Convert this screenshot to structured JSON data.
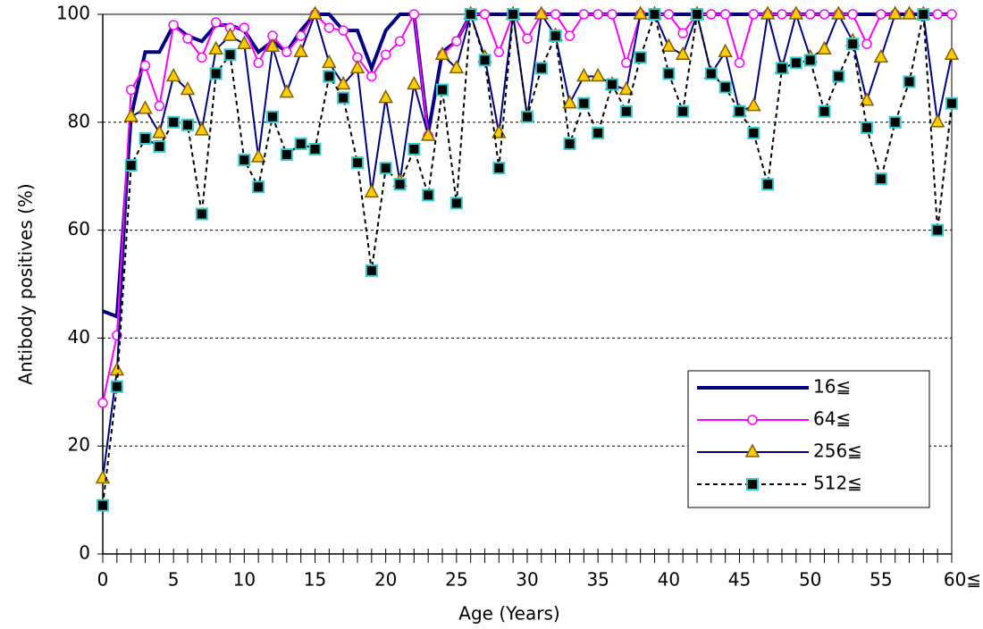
{
  "chart_data": {
    "type": "line",
    "xlabel": "Age (Years)",
    "ylabel": "Antibody positives (%)",
    "categories": [
      "0",
      null,
      null,
      null,
      null,
      "5",
      null,
      null,
      null,
      null,
      "10",
      null,
      null,
      null,
      null,
      "15",
      null,
      null,
      null,
      null,
      "20",
      null,
      null,
      null,
      null,
      "25",
      null,
      null,
      null,
      null,
      "30",
      null,
      null,
      null,
      null,
      "35",
      null,
      null,
      null,
      null,
      "40",
      null,
      null,
      null,
      null,
      "45",
      null,
      null,
      null,
      null,
      "50",
      null,
      null,
      null,
      null,
      "55",
      null,
      null,
      null,
      null,
      "60≦"
    ],
    "ylim": [
      0,
      100
    ],
    "yticks": [
      0,
      20,
      40,
      60,
      80,
      100
    ],
    "grid": true,
    "legend": "lower right",
    "series": [
      {
        "name": "16≦",
        "color": "#000080",
        "line_width": 4,
        "dash": false,
        "marker": "none",
        "values": [
          45,
          44,
          81,
          93,
          93,
          98,
          96,
          95,
          98,
          98,
          97,
          93,
          95,
          93,
          97,
          100,
          100,
          97,
          97,
          90,
          97,
          100,
          100,
          78,
          93,
          95,
          100,
          100,
          100,
          100,
          100,
          100,
          100,
          100,
          100,
          100,
          100,
          100,
          100,
          100,
          100,
          100,
          100,
          100,
          100,
          100,
          100,
          100,
          100,
          100,
          100,
          100,
          100,
          100,
          100,
          100,
          100,
          100,
          100,
          100,
          100
        ]
      },
      {
        "name": "64≦",
        "color": "#ff00ff",
        "line_width": 2,
        "dash": false,
        "marker": "circle",
        "marker_fill": "#ffffff",
        "marker_edge": "#ff00ff",
        "values": [
          28,
          40.5,
          86,
          90.5,
          83,
          98,
          95.5,
          92,
          98.5,
          97.5,
          97.5,
          91,
          96,
          93,
          96,
          100,
          97.5,
          97,
          92,
          88.5,
          92.5,
          95,
          100,
          77.5,
          92.5,
          95,
          100,
          100,
          93,
          100,
          95.5,
          100,
          100,
          96,
          100,
          100,
          100,
          91,
          100,
          100,
          100,
          96.5,
          100,
          100,
          100,
          91,
          100,
          100,
          100,
          100,
          100,
          100,
          100,
          100,
          94.5,
          100,
          100,
          100,
          100,
          100,
          100
        ]
      },
      {
        "name": "256≦",
        "color": "#000080",
        "line_width": 2,
        "dash": false,
        "marker": "triangle",
        "marker_fill": "#ffcc00",
        "marker_edge": "#806000",
        "values": [
          14,
          34,
          81,
          82.5,
          78,
          88.5,
          86,
          78.5,
          93.5,
          96,
          94.5,
          73.5,
          94,
          85.5,
          93,
          100,
          91,
          87,
          90,
          67,
          84.5,
          69,
          87,
          77.5,
          92.5,
          90,
          100,
          92,
          78,
          100,
          81,
          100,
          96,
          83.5,
          88.5,
          88.5,
          87,
          86,
          100,
          100,
          94,
          92.5,
          100,
          89,
          93,
          82,
          83,
          100,
          90,
          100,
          92,
          93.5,
          100,
          95,
          84,
          92,
          100,
          100,
          100,
          80,
          92.5
        ]
      },
      {
        "name": "512≦",
        "color": "#000000",
        "line_width": 2,
        "dash": true,
        "marker": "square",
        "marker_fill": "#000000",
        "marker_edge": "#33cccc",
        "values": [
          9,
          31,
          72,
          77,
          75.5,
          80,
          79.5,
          63,
          89,
          92.5,
          73,
          68,
          81,
          74,
          76,
          75,
          88.5,
          84.5,
          72.5,
          52.5,
          71.5,
          68.5,
          75,
          66.5,
          86,
          65,
          100,
          91.5,
          71.5,
          100,
          81,
          90,
          96,
          76,
          83.5,
          78,
          87,
          82,
          92,
          100,
          89,
          82,
          100,
          89,
          86.5,
          82,
          78,
          68.5,
          90,
          91,
          91.5,
          82,
          88.5,
          94.5,
          79,
          69.5,
          80,
          87.5,
          100,
          60,
          83.5
        ]
      }
    ]
  }
}
